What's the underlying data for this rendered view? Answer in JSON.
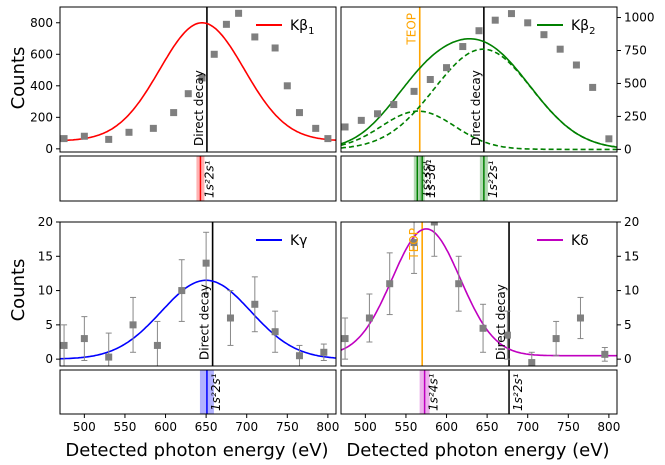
{
  "figure": {
    "xlabel": "Detected photon energy (eV)",
    "ylabel": "Counts"
  },
  "chart_data": [
    {
      "id": "kbeta1",
      "type": "scatter",
      "title": "Kβ1",
      "legend": {
        "label": "Kβ",
        "sub": "1",
        "color": "#ff0000",
        "placement": "top-right"
      },
      "xlim": [
        470,
        810
      ],
      "ylim": [
        -20,
        900
      ],
      "yticks": [
        0,
        200,
        400,
        600,
        800
      ],
      "yaxis_side": "left",
      "x": [
        475,
        500,
        530,
        555,
        585,
        610,
        628,
        645,
        660,
        675,
        690,
        710,
        735,
        750,
        765,
        785,
        800
      ],
      "y": [
        65,
        80,
        60,
        105,
        130,
        230,
        350,
        450,
        600,
        790,
        860,
        710,
        640,
        400,
        230,
        130,
        65
      ],
      "fits": [
        {
          "name": "Gaussian fit",
          "color": "#ff0000",
          "dashed": false,
          "peak": 645,
          "amp": 750,
          "sigma": 52,
          "base": 50
        }
      ],
      "vlines": [
        {
          "x": 651,
          "color": "#000000",
          "label": "Direct decay"
        }
      ],
      "transitions": [
        {
          "x": 643,
          "color": "#ff0000",
          "band_width": 8,
          "label": "1s²2s¹"
        }
      ]
    },
    {
      "id": "kbeta2",
      "type": "scatter",
      "title": "Kβ2",
      "legend": {
        "label": "Kβ",
        "sub": "2",
        "color": "#008000",
        "placement": "top-right"
      },
      "xlim": [
        470,
        810
      ],
      "ylim": [
        -20,
        1080
      ],
      "yticks": [
        0,
        250,
        500,
        750,
        1000
      ],
      "yaxis_side": "right",
      "x": [
        475,
        495,
        515,
        535,
        560,
        580,
        600,
        620,
        640,
        660,
        680,
        700,
        720,
        740,
        760,
        780,
        800
      ],
      "y": [
        170,
        220,
        270,
        340,
        440,
        530,
        620,
        780,
        900,
        980,
        1030,
        960,
        870,
        760,
        640,
        470,
        80
      ],
      "fits": [
        {
          "name": "Total fit",
          "color": "#008000",
          "dashed": false,
          "components": [
            {
              "peak": 645,
              "amp": 760,
              "sigma": 60
            },
            {
              "peak": 565,
              "amp": 290,
              "sigma": 45
            }
          ],
          "base": 0
        },
        {
          "name": "Kβ2 component",
          "color": "#008000",
          "dashed": true,
          "peak": 645,
          "amp": 760,
          "sigma": 60,
          "base": 0
        },
        {
          "name": "TEOP component",
          "color": "#008000",
          "dashed": true,
          "peak": 565,
          "amp": 290,
          "sigma": 45,
          "base": 0
        }
      ],
      "vlines": [
        {
          "x": 567,
          "color": "#ffa500",
          "label": "TEOP"
        },
        {
          "x": 646,
          "color": "#000000",
          "label": "Direct decay"
        }
      ],
      "transitions": [
        {
          "x": 564,
          "color": "#008000",
          "band_width": 7,
          "label": "1s²3s¹"
        },
        {
          "x": 570,
          "color": "#008000",
          "band_width": 5,
          "label": "1s²3d¹"
        },
        {
          "x": 646,
          "color": "#008000",
          "band_width": 8,
          "label": "1s²2s¹"
        }
      ]
    },
    {
      "id": "kgamma",
      "type": "scatter",
      "title": "Kγ",
      "legend": {
        "label": "Kγ",
        "sub": "",
        "color": "#0000ff",
        "placement": "top-right"
      },
      "xlim": [
        470,
        810
      ],
      "ylim": [
        -1,
        20
      ],
      "yticks": [
        0,
        5,
        10,
        15,
        20
      ],
      "yaxis_side": "left",
      "x": [
        475,
        500,
        530,
        560,
        590,
        620,
        650,
        680,
        710,
        735,
        765,
        795
      ],
      "y": [
        2,
        3,
        0.3,
        5,
        2,
        10,
        14,
        6,
        8,
        4,
        0.5,
        1
      ],
      "yerr": [
        3,
        3.2,
        3.5,
        4,
        3.5,
        4.5,
        4.5,
        4,
        4,
        3,
        1.5,
        1.2
      ],
      "fits": [
        {
          "name": "Gaussian fit",
          "color": "#0000ff",
          "dashed": false,
          "peak": 650,
          "amp": 11.5,
          "sigma": 55,
          "base": 0
        }
      ],
      "vlines": [
        {
          "x": 658,
          "color": "#000000",
          "label": "Direct decay"
        }
      ],
      "transitions": [
        {
          "x": 651,
          "color": "#0000ff",
          "band_width": 14,
          "label": "1s²2s¹"
        }
      ]
    },
    {
      "id": "kdelta",
      "type": "scatter",
      "title": "Kδ",
      "legend": {
        "label": "Kδ",
        "sub": "",
        "color": "#c000c0",
        "placement": "top-right"
      },
      "xlim": [
        470,
        810
      ],
      "ylim": [
        -1,
        20
      ],
      "yticks": [
        0,
        5,
        10,
        15,
        20
      ],
      "yaxis_side": "right",
      "x": [
        475,
        505,
        530,
        560,
        585,
        615,
        645,
        675,
        705,
        735,
        765,
        795
      ],
      "y": [
        3,
        6,
        11,
        17,
        20,
        11,
        4.5,
        3.5,
        -0.5,
        3,
        6,
        0.7
      ],
      "yerr": [
        3,
        3.5,
        4.5,
        4.5,
        5,
        4,
        3.5,
        3.5,
        1.5,
        2.5,
        3,
        1
      ],
      "fits": [
        {
          "name": "Gaussian fit",
          "color": "#c000c0",
          "dashed": false,
          "peak": 575,
          "amp": 18.5,
          "sigma": 42,
          "base": 0.5
        }
      ],
      "vlines": [
        {
          "x": 570,
          "color": "#ffa500",
          "label": "TEOP"
        },
        {
          "x": 677,
          "color": "#000000",
          "label": "Direct decay"
        }
      ],
      "transitions": [
        {
          "x": 573,
          "color": "#c000c0",
          "band_width": 10,
          "label": "1s²4s¹"
        },
        {
          "x": 677,
          "color": "#000000",
          "band_width": 0,
          "label": "1s²2s¹"
        }
      ]
    }
  ],
  "xticks": [
    500,
    550,
    600,
    650,
    700,
    750,
    800
  ]
}
